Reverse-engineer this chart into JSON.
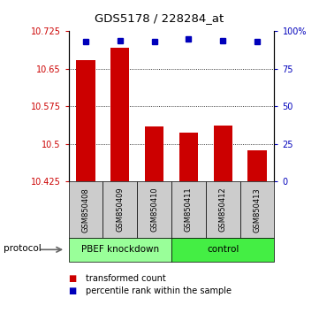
{
  "title": "GDS5178 / 228284_at",
  "samples": [
    "GSM850408",
    "GSM850409",
    "GSM850410",
    "GSM850411",
    "GSM850412",
    "GSM850413"
  ],
  "red_values": [
    10.668,
    10.692,
    10.535,
    10.523,
    10.537,
    10.487
  ],
  "blue_values": [
    93,
    94,
    93,
    95,
    94,
    93
  ],
  "ylim_left": [
    10.425,
    10.725
  ],
  "ylim_right": [
    0,
    100
  ],
  "yticks_left": [
    10.425,
    10.5,
    10.575,
    10.65,
    10.725
  ],
  "yticks_right": [
    0,
    25,
    50,
    75,
    100
  ],
  "ytick_labels_left": [
    "10.425",
    "10.5",
    "10.575",
    "10.65",
    "10.725"
  ],
  "ytick_labels_right": [
    "0",
    "25",
    "50",
    "75",
    "100%"
  ],
  "groups": [
    {
      "label": "PBEF knockdown",
      "n": 3,
      "color": "#99ff99"
    },
    {
      "label": "control",
      "n": 3,
      "color": "#44ee44"
    }
  ],
  "protocol_label": "protocol",
  "bar_color": "#cc0000",
  "dot_color": "#0000bb",
  "bar_width": 0.55,
  "legend_red_label": "transformed count",
  "legend_blue_label": "percentile rank within the sample",
  "left_tick_color": "#cc0000",
  "right_tick_color": "#0000bb"
}
